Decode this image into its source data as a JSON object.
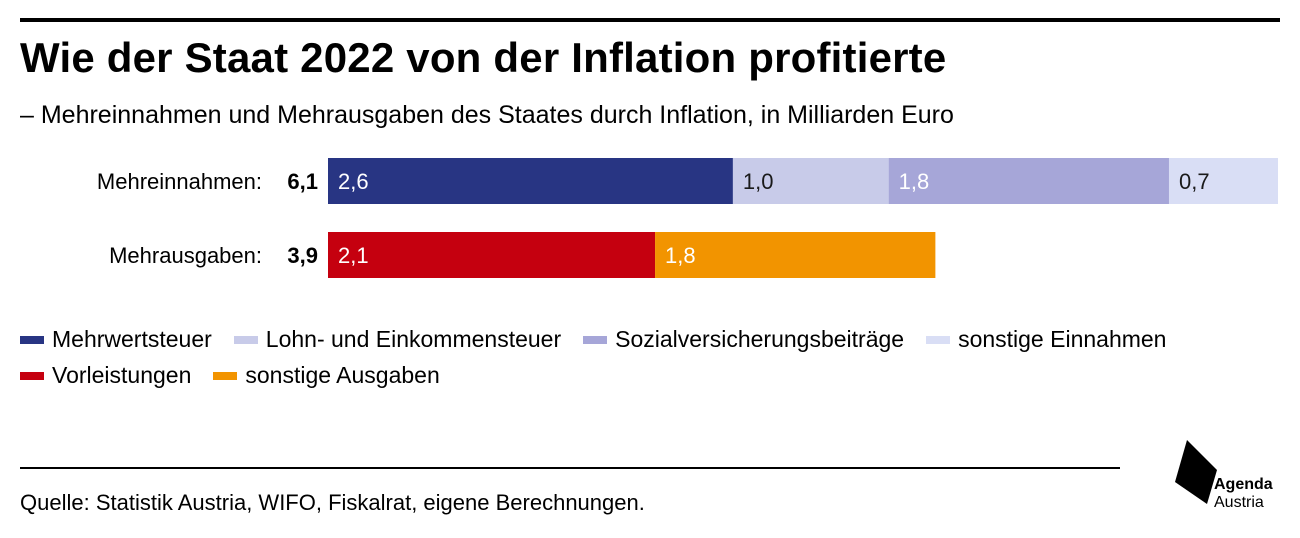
{
  "title": "Wie der Staat 2022 von der Inflation profitierte",
  "subtitle": "– Mehreinnahmen und Mehrausgaben des Staates durch Inflation, in Milliarden Euro",
  "chart_data": {
    "type": "bar",
    "orientation": "horizontal",
    "stacked": true,
    "categories": [
      "Mehreinnahmen:",
      "Mehrausgaben:"
    ],
    "totals": [
      "6,1",
      "3,9"
    ],
    "rows": [
      {
        "label": "Mehreinnahmen:",
        "total": "6,1",
        "segments": [
          {
            "name": "Mehrwertsteuer",
            "value": 2.6,
            "label": "2,6",
            "color": "#283583",
            "text_color": "#ffffff"
          },
          {
            "name": "Lohn- und Einkommensteuer",
            "value": 1.0,
            "label": "1,0",
            "color": "#c8cbe9",
            "text_color": "#1a1a1a"
          },
          {
            "name": "Sozialversicherungsbeiträge",
            "value": 1.8,
            "label": "1,8",
            "color": "#a6a6d8",
            "text_color": "#ffffff"
          },
          {
            "name": "sonstige Einnahmen",
            "value": 0.7,
            "label": "0,7",
            "color": "#d9def5",
            "text_color": "#1a1a1a"
          }
        ]
      },
      {
        "label": "Mehrausgaben:",
        "total": "3,9",
        "segments": [
          {
            "name": "Vorleistungen",
            "value": 2.1,
            "label": "2,1",
            "color": "#c5000f",
            "text_color": "#ffffff"
          },
          {
            "name": "sonstige Ausgaben",
            "value": 1.8,
            "label": "1,8",
            "color": "#f29400",
            "text_color": "#ffffff"
          }
        ]
      }
    ],
    "xlim": [
      0,
      6.1
    ],
    "grid": false,
    "legend_position": "bottom"
  },
  "legend": {
    "row1": [
      {
        "label": "Mehrwertsteuer",
        "color": "#283583"
      },
      {
        "label": "Lohn- und Einkommensteuer",
        "color": "#c8cbe9"
      },
      {
        "label": "Sozialversicherungsbeiträge",
        "color": "#a6a6d8"
      },
      {
        "label": "sonstige Einnahmen",
        "color": "#d9def5"
      }
    ],
    "row2": [
      {
        "label": "Vorleistungen",
        "color": "#c5000f"
      },
      {
        "label": "sonstige Ausgaben",
        "color": "#f29400"
      }
    ]
  },
  "source": "Quelle: Statistik Austria, WIFO, Fiskalrat, eigene Berechnungen.",
  "logo": {
    "line1": "Agenda",
    "line2": "Austria",
    "icon": "agenda-austria-logo-icon"
  }
}
